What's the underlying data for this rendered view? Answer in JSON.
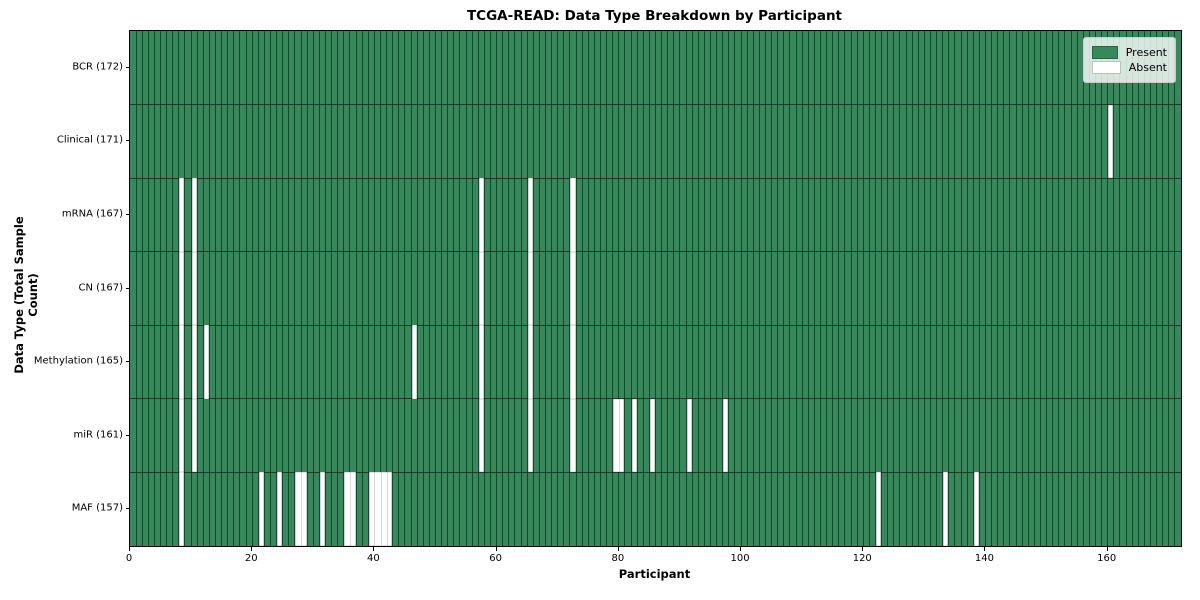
{
  "colors": {
    "present": "#35895a",
    "absent": "#ffffff",
    "grid_line": "rgba(0,0,0,0.5)",
    "axis": "#000000",
    "legend_bg": "rgba(255,255,255,0.8)",
    "legend_border": "#cccccc",
    "background": "#ffffff"
  },
  "chart_data": {
    "type": "heatmap",
    "title": "TCGA-READ: Data Type Breakdown by Participant",
    "xlabel": "Participant",
    "ylabel": "Data Type (Total Sample Count)",
    "x_ticks": [
      0,
      20,
      40,
      60,
      80,
      100,
      120,
      140,
      160
    ],
    "x_range": [
      0,
      172
    ],
    "n_participants": 172,
    "grid": "per-cell borders, dark lines between participants and data-type rows",
    "legend_position": "upper right",
    "legend_entries": [
      {
        "label": "Present",
        "color": "#35895a"
      },
      {
        "label": "Absent",
        "color": "#ffffff"
      }
    ],
    "rows": [
      {
        "label": "BCR (172)",
        "data_type": "BCR",
        "total_samples": 172,
        "absent_participants": []
      },
      {
        "label": "Clinical (171)",
        "data_type": "Clinical",
        "total_samples": 171,
        "absent_participants": [
          160
        ]
      },
      {
        "label": "mRNA (167)",
        "data_type": "mRNA",
        "total_samples": 167,
        "absent_participants": [
          8,
          10,
          57,
          65,
          72
        ]
      },
      {
        "label": "CN (167)",
        "data_type": "CN",
        "total_samples": 167,
        "absent_participants": [
          8,
          10,
          57,
          65,
          72
        ]
      },
      {
        "label": "Methylation (165)",
        "data_type": "Methylation",
        "total_samples": 165,
        "absent_participants": [
          8,
          10,
          12,
          46,
          57,
          65,
          72
        ]
      },
      {
        "label": "miR (161)",
        "data_type": "miR",
        "total_samples": 161,
        "absent_participants": [
          8,
          10,
          57,
          65,
          72,
          79,
          80,
          82,
          85,
          91,
          97
        ]
      },
      {
        "label": "MAF (157)",
        "data_type": "MAF",
        "total_samples": 157,
        "absent_participants": [
          8,
          21,
          24,
          27,
          28,
          31,
          35,
          36,
          39,
          40,
          41,
          42,
          122,
          133,
          138
        ]
      }
    ]
  }
}
